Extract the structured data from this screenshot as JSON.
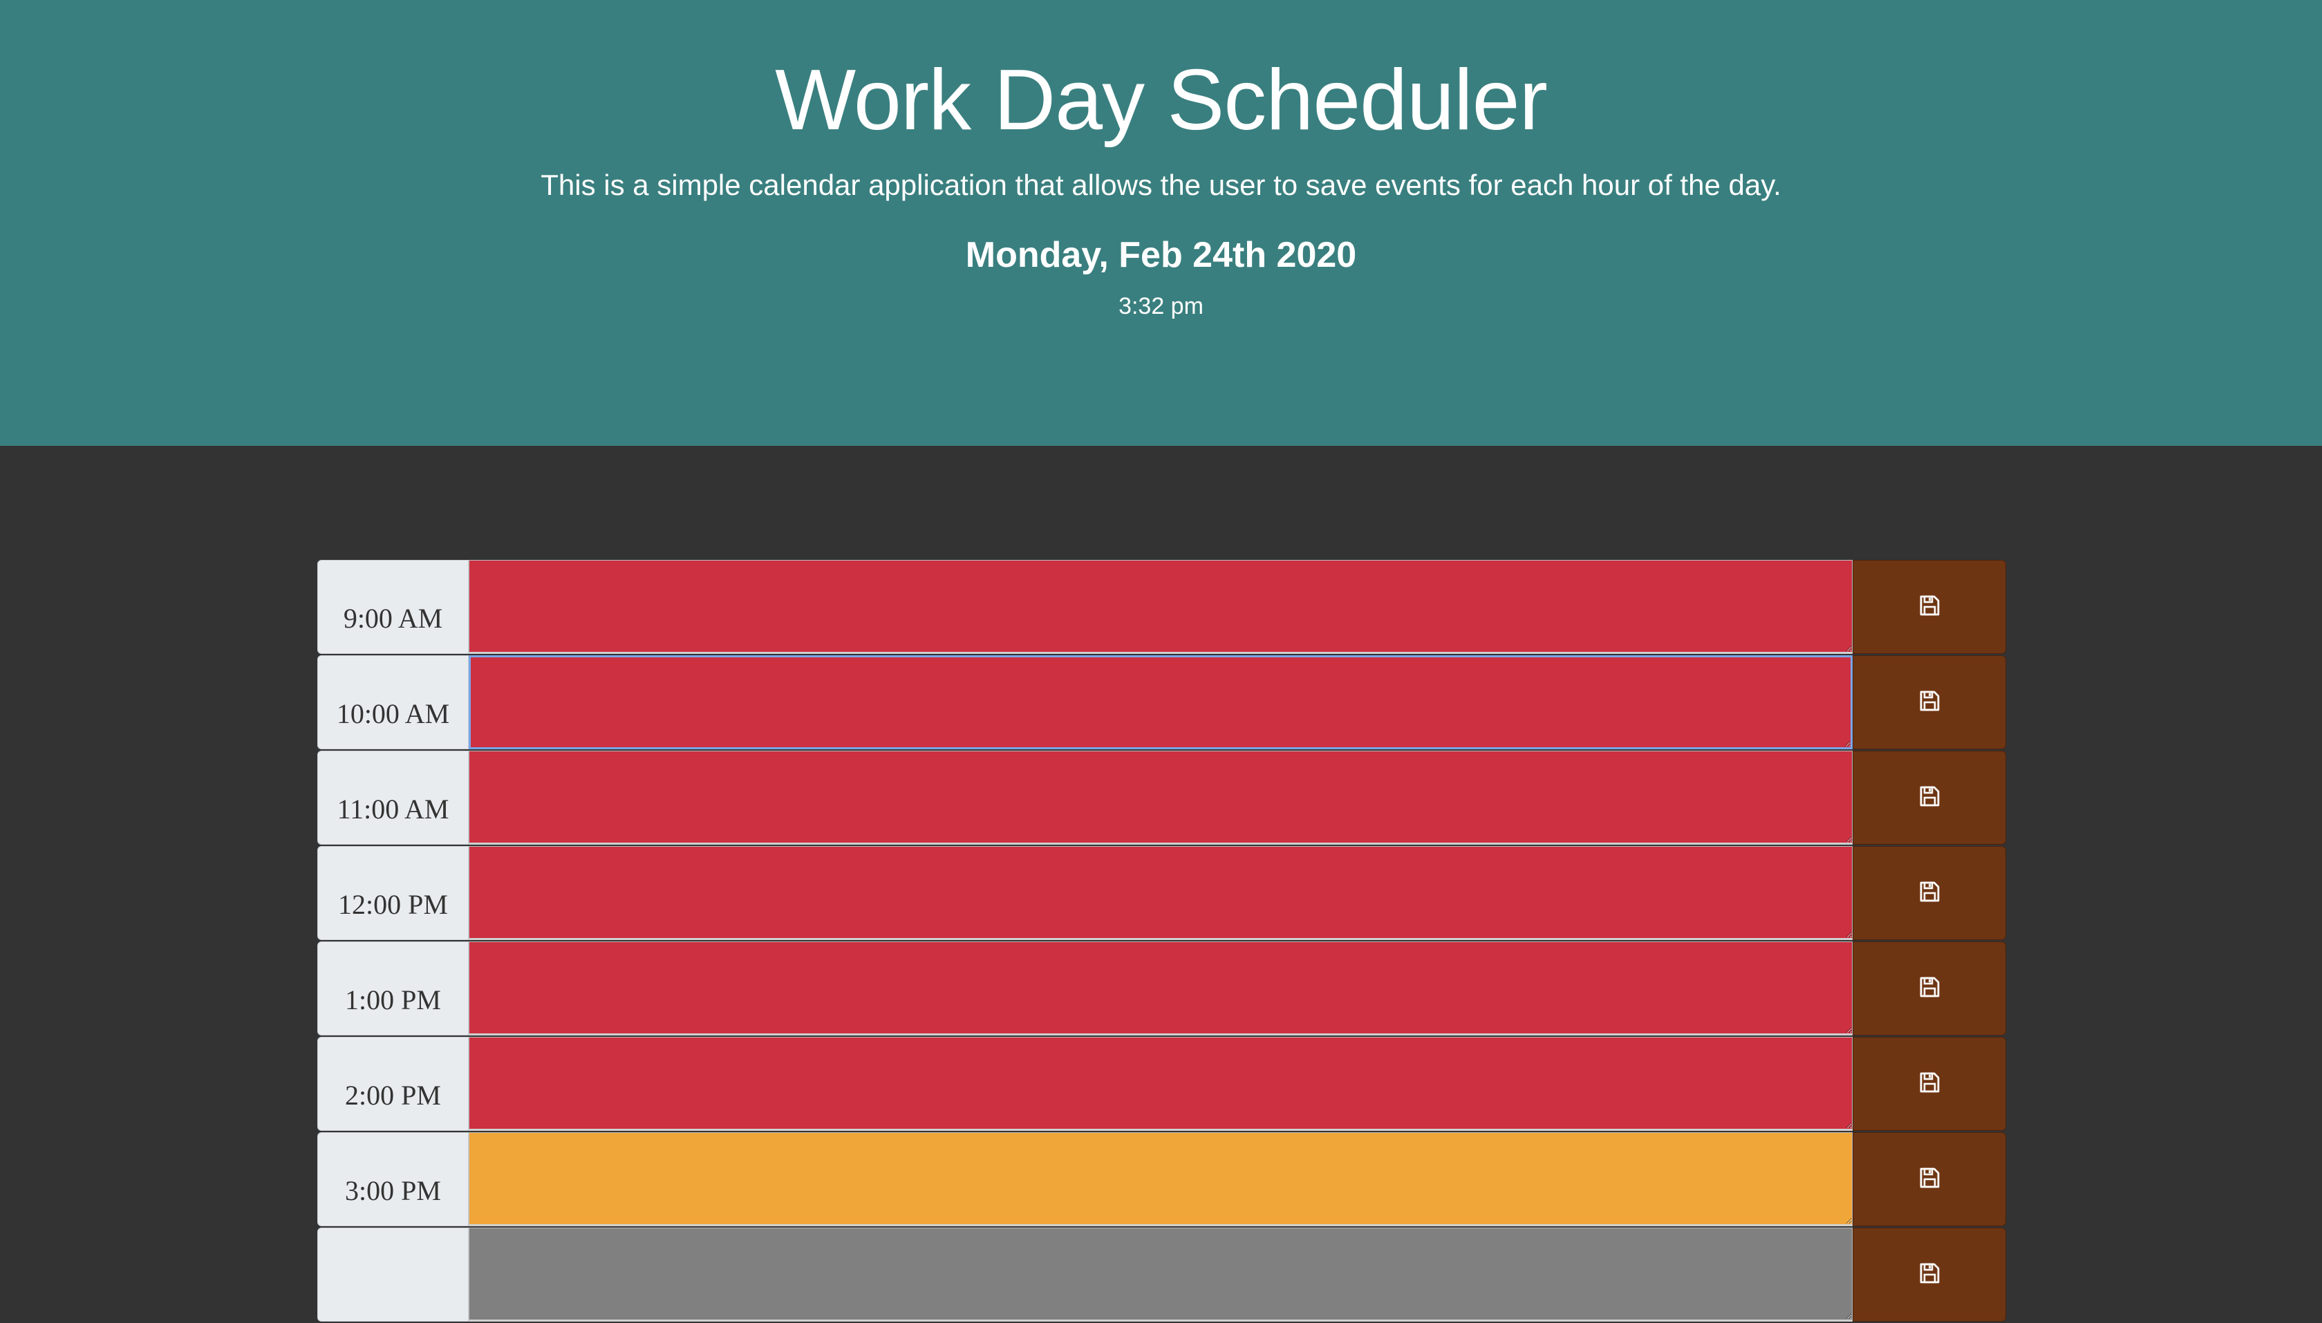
{
  "header": {
    "title": "Work Day Scheduler",
    "lead": "This is a simple calendar application that allows the user to save events for each hour of the day.",
    "current_date": "Monday, Feb 24th 2020",
    "current_time": "3:32 pm"
  },
  "colors": {
    "header_bg": "#3a7f7f",
    "page_bg": "#333333",
    "past": "#cc3041",
    "present": "#f1a639",
    "future": "#808080",
    "save_button": "#6e3513"
  },
  "save_icon": "floppy-disk-icon",
  "time_blocks": [
    {
      "hour_label": "9:00 AM",
      "state": "past",
      "text": ""
    },
    {
      "hour_label": "10:00 AM",
      "state": "past",
      "text": "",
      "focused": true
    },
    {
      "hour_label": "11:00 AM",
      "state": "past",
      "text": ""
    },
    {
      "hour_label": "12:00 PM",
      "state": "past",
      "text": ""
    },
    {
      "hour_label": "1:00 PM",
      "state": "past",
      "text": ""
    },
    {
      "hour_label": "2:00 PM",
      "state": "past",
      "text": ""
    },
    {
      "hour_label": "3:00 PM",
      "state": "present",
      "text": ""
    },
    {
      "hour_label": "",
      "state": "future",
      "text": ""
    }
  ]
}
